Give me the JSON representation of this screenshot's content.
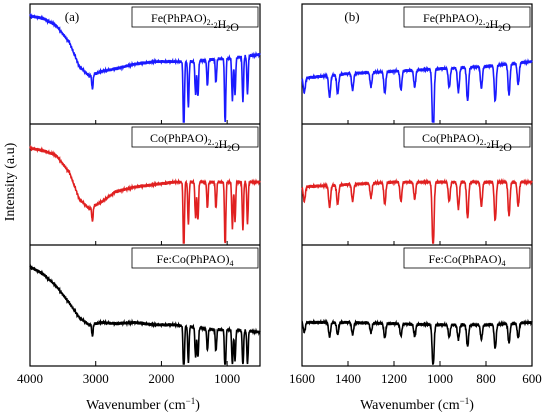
{
  "figure": {
    "ylabel": "Intensity (a.u)",
    "xlabel": "Wavenumber (cm",
    "xlabel_sup": "−1",
    "xlabel_end": ")"
  },
  "chart_data": [
    {
      "type": "line",
      "panel_label": "(a)",
      "xlabel": "Wavenumber (cm−1)",
      "ylabel": "Intensity (a.u)",
      "xlim": [
        4000,
        500
      ],
      "x_ticks": [
        4000,
        3000,
        2000,
        1000
      ],
      "y_ticks_shown": false,
      "series": [
        {
          "name": "Fe(PhPAO)2.2H2O",
          "color": "#1a1aff",
          "peaks": [
            [
              3050,
              0.12
            ],
            [
              1660,
              0.62
            ],
            [
              1590,
              0.38
            ],
            [
              1480,
              0.28
            ],
            [
              1445,
              0.3
            ],
            [
              1300,
              0.22
            ],
            [
              1170,
              0.2
            ],
            [
              1030,
              0.55
            ],
            [
              920,
              0.35
            ],
            [
              880,
              0.3
            ],
            [
              760,
              0.38
            ],
            [
              690,
              0.32
            ]
          ],
          "values": [
            [
              4000,
              0.9
            ],
            [
              3800,
              0.88
            ],
            [
              3600,
              0.82
            ],
            [
              3400,
              0.68
            ],
            [
              3250,
              0.48
            ],
            [
              3100,
              0.4
            ],
            [
              2900,
              0.44
            ],
            [
              2700,
              0.46
            ],
            [
              2400,
              0.5
            ],
            [
              2100,
              0.52
            ],
            [
              1800,
              0.52
            ],
            [
              1500,
              0.52
            ],
            [
              1200,
              0.54
            ],
            [
              900,
              0.55
            ],
            [
              500,
              0.58
            ]
          ]
        },
        {
          "name": "Co(PhPAO)2.2H2O",
          "color": "#e02020",
          "peaks": [
            [
              3050,
              0.12
            ],
            [
              1660,
              0.6
            ],
            [
              1590,
              0.35
            ],
            [
              1480,
              0.3
            ],
            [
              1445,
              0.32
            ],
            [
              1300,
              0.22
            ],
            [
              1170,
              0.22
            ],
            [
              1030,
              0.55
            ],
            [
              920,
              0.38
            ],
            [
              880,
              0.32
            ],
            [
              760,
              0.4
            ],
            [
              690,
              0.35
            ]
          ],
          "values": [
            [
              4000,
              0.8
            ],
            [
              3800,
              0.78
            ],
            [
              3600,
              0.74
            ],
            [
              3400,
              0.6
            ],
            [
              3250,
              0.38
            ],
            [
              3100,
              0.3
            ],
            [
              2900,
              0.36
            ],
            [
              2700,
              0.44
            ],
            [
              2400,
              0.48
            ],
            [
              2100,
              0.5
            ],
            [
              1800,
              0.52
            ],
            [
              1500,
              0.52
            ],
            [
              1200,
              0.52
            ],
            [
              900,
              0.52
            ],
            [
              500,
              0.52
            ]
          ]
        },
        {
          "name": "Fe:Co(PhPAO)4",
          "color": "#000000",
          "peaks": [
            [
              3050,
              0.1
            ],
            [
              1660,
              0.45
            ],
            [
              1590,
              0.3
            ],
            [
              1480,
              0.25
            ],
            [
              1445,
              0.25
            ],
            [
              1300,
              0.18
            ],
            [
              1170,
              0.18
            ],
            [
              1030,
              0.42
            ],
            [
              920,
              0.3
            ],
            [
              880,
              0.25
            ],
            [
              760,
              0.3
            ],
            [
              690,
              0.28
            ]
          ],
          "values": [
            [
              4000,
              0.82
            ],
            [
              3800,
              0.76
            ],
            [
              3600,
              0.66
            ],
            [
              3400,
              0.52
            ],
            [
              3250,
              0.4
            ],
            [
              3100,
              0.34
            ],
            [
              2900,
              0.36
            ],
            [
              2700,
              0.35
            ],
            [
              2400,
              0.36
            ],
            [
              2100,
              0.34
            ],
            [
              1800,
              0.34
            ],
            [
              1500,
              0.32
            ],
            [
              1200,
              0.3
            ],
            [
              900,
              0.3
            ],
            [
              500,
              0.28
            ]
          ]
        }
      ]
    },
    {
      "type": "line",
      "panel_label": "(b)",
      "xlabel": "Wavenumber (cm−1)",
      "ylabel": "",
      "xlim": [
        1600,
        600
      ],
      "x_ticks": [
        1600,
        1400,
        1200,
        1000,
        800,
        600
      ],
      "y_ticks_shown": false,
      "series": [
        {
          "name": "Fe(PhPAO)2.2H2O",
          "color": "#1a1aff",
          "peaks": [
            [
              1590,
              0.12
            ],
            [
              1480,
              0.18
            ],
            [
              1445,
              0.16
            ],
            [
              1380,
              0.14
            ],
            [
              1300,
              0.12
            ],
            [
              1240,
              0.18
            ],
            [
              1170,
              0.16
            ],
            [
              1110,
              0.14
            ],
            [
              1030,
              0.55
            ],
            [
              960,
              0.16
            ],
            [
              920,
              0.2
            ],
            [
              880,
              0.28
            ],
            [
              820,
              0.18
            ],
            [
              760,
              0.3
            ],
            [
              700,
              0.26
            ],
            [
              660,
              0.18
            ]
          ],
          "values": [
            [
              1600,
              0.38
            ],
            [
              1400,
              0.42
            ],
            [
              1200,
              0.44
            ],
            [
              1000,
              0.46
            ],
            [
              800,
              0.48
            ],
            [
              600,
              0.52
            ]
          ]
        },
        {
          "name": "Co(PhPAO)2.2H2O",
          "color": "#e02020",
          "peaks": [
            [
              1590,
              0.12
            ],
            [
              1480,
              0.18
            ],
            [
              1445,
              0.16
            ],
            [
              1380,
              0.14
            ],
            [
              1300,
              0.12
            ],
            [
              1240,
              0.18
            ],
            [
              1170,
              0.16
            ],
            [
              1110,
              0.14
            ],
            [
              1030,
              0.55
            ],
            [
              960,
              0.16
            ],
            [
              920,
              0.22
            ],
            [
              880,
              0.3
            ],
            [
              820,
              0.2
            ],
            [
              760,
              0.32
            ],
            [
              700,
              0.28
            ],
            [
              660,
              0.2
            ]
          ],
          "values": [
            [
              1600,
              0.48
            ],
            [
              1400,
              0.5
            ],
            [
              1200,
              0.52
            ],
            [
              1000,
              0.52
            ],
            [
              800,
              0.52
            ],
            [
              600,
              0.52
            ]
          ]
        },
        {
          "name": "Fe:Co(PhPAO)4",
          "color": "#000000",
          "peaks": [
            [
              1590,
              0.08
            ],
            [
              1480,
              0.12
            ],
            [
              1445,
              0.1
            ],
            [
              1380,
              0.1
            ],
            [
              1300,
              0.08
            ],
            [
              1240,
              0.12
            ],
            [
              1170,
              0.1
            ],
            [
              1110,
              0.1
            ],
            [
              1030,
              0.35
            ],
            [
              960,
              0.1
            ],
            [
              920,
              0.12
            ],
            [
              880,
              0.18
            ],
            [
              820,
              0.12
            ],
            [
              760,
              0.2
            ],
            [
              700,
              0.16
            ],
            [
              660,
              0.12
            ]
          ],
          "values": [
            [
              1600,
              0.36
            ],
            [
              1400,
              0.36
            ],
            [
              1200,
              0.35
            ],
            [
              1000,
              0.34
            ],
            [
              800,
              0.34
            ],
            [
              600,
              0.36
            ]
          ]
        }
      ]
    }
  ]
}
